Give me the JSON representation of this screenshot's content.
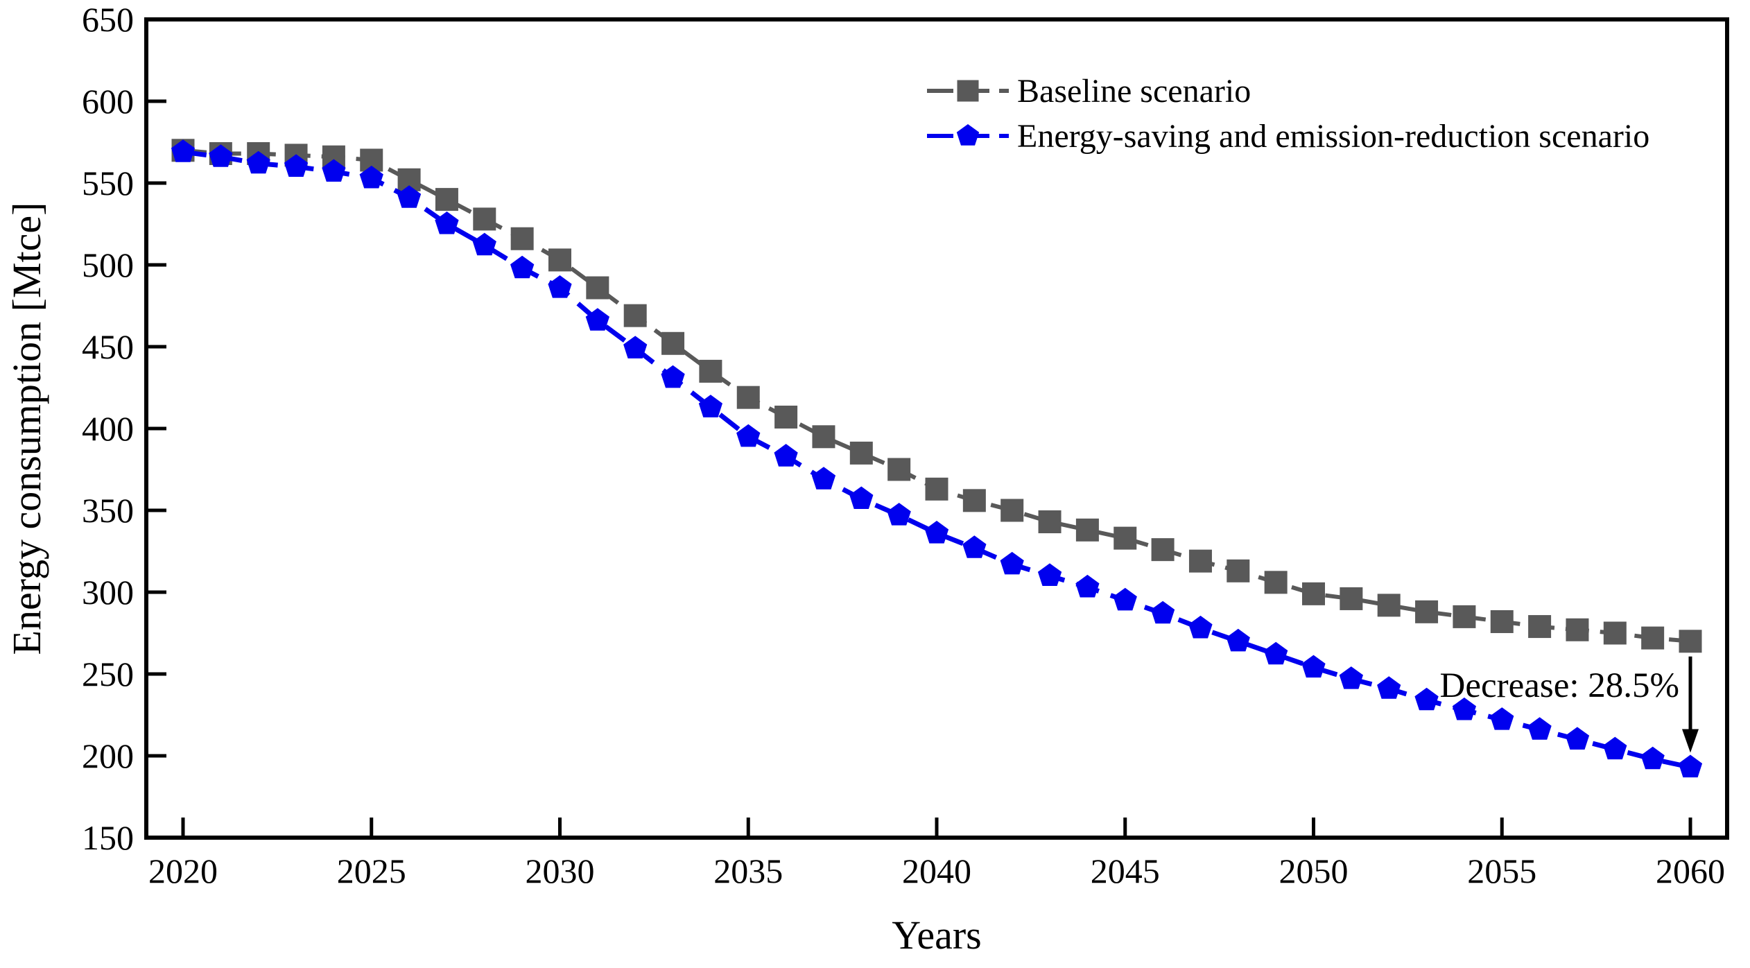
{
  "figure": {
    "background": "#ffffff",
    "frame_color": "#000000"
  },
  "axes": {
    "x": {
      "title": "Years",
      "min": 2020,
      "max": 2060,
      "tick_step": 5
    },
    "y": {
      "title": "Energy consumption  [Mtce]",
      "min": 150,
      "max": 650,
      "tick_step": 50
    }
  },
  "legend": {
    "position": "upper-right-inside",
    "items": [
      {
        "label": "Baseline scenario",
        "marker": "square",
        "color": "#595959"
      },
      {
        "label": "Energy-saving and emission-reduction scenario",
        "marker": "pentagon",
        "color": "#0000EE"
      }
    ]
  },
  "annotation": {
    "text": "Decrease: 28.5%",
    "at_year": 2060,
    "arrow": "down",
    "color": "#000000"
  },
  "chart_data": {
    "type": "line",
    "title": "",
    "xlabel": "Years",
    "ylabel": "Energy consumption  [Mtce]",
    "xlim": [
      2017.6,
      2062.4
    ],
    "ylim": [
      150,
      650
    ],
    "grid": false,
    "legend_position": "upper right",
    "x": [
      2020,
      2021,
      2022,
      2023,
      2024,
      2025,
      2026,
      2027,
      2028,
      2029,
      2030,
      2031,
      2032,
      2033,
      2034,
      2035,
      2036,
      2037,
      2038,
      2039,
      2040,
      2041,
      2042,
      2043,
      2044,
      2045,
      2046,
      2047,
      2048,
      2049,
      2050,
      2051,
      2052,
      2053,
      2054,
      2055,
      2056,
      2057,
      2058,
      2059,
      2060
    ],
    "series": [
      {
        "name": "Baseline scenario",
        "color": "#595959",
        "marker": "square",
        "line_style": "dashed",
        "values": [
          570,
          568,
          568,
          567,
          566,
          564,
          552,
          540,
          528,
          516,
          503,
          486,
          469,
          452,
          435,
          419,
          407,
          395,
          385,
          375,
          363,
          356,
          350,
          343,
          338,
          333,
          326,
          319,
          313,
          306,
          299,
          296,
          292,
          288,
          285,
          282,
          279,
          277,
          275,
          272,
          270
        ]
      },
      {
        "name": "Energy-saving and emission-reduction scenario",
        "color": "#0000EE",
        "marker": "pentagon",
        "line_style": "dashed",
        "values": [
          569,
          566,
          562,
          560,
          557,
          553,
          541,
          525,
          512,
          498,
          486,
          466,
          449,
          431,
          413,
          395,
          383,
          369,
          357,
          347,
          336,
          327,
          317,
          310,
          303,
          295,
          287,
          278,
          270,
          262,
          254,
          247,
          241,
          234,
          228,
          222,
          216,
          210,
          204,
          198,
          193
        ]
      }
    ]
  }
}
